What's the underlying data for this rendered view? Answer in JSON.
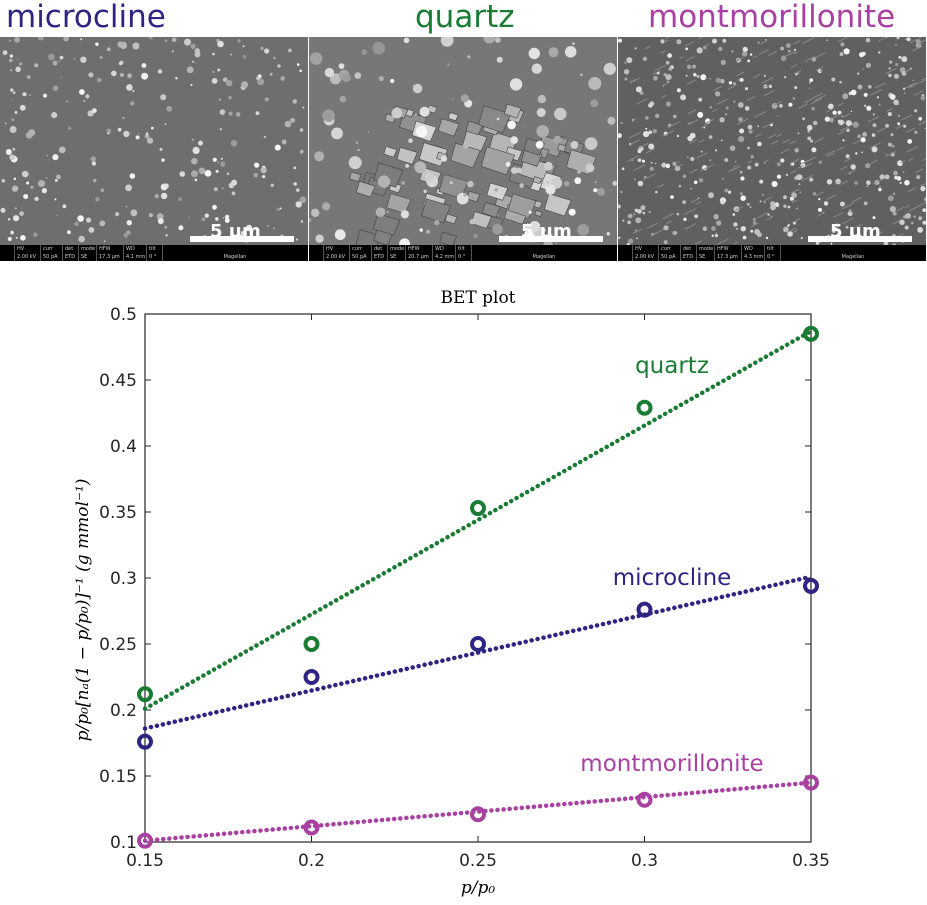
{
  "sem": {
    "labels": [
      {
        "text": "microcline",
        "color": "#2e2583"
      },
      {
        "text": "quartz",
        "color": "#1a7b34"
      },
      {
        "text": "montmorillonite",
        "color": "#a841a1"
      }
    ],
    "scale_bar": "5 µm",
    "footer_headers": [
      "HV",
      "curr",
      "det",
      "mode",
      "HFW",
      "WD",
      "tilt"
    ],
    "footers": [
      [
        "2.00 kV",
        "50 pA",
        "ETD",
        "SE",
        "17.3 µm",
        "4.1 mm",
        "0 °"
      ],
      [
        "2.00 kV",
        "50 pA",
        "ETD",
        "SE",
        "20.7 µm",
        "4.2 mm",
        "0 °"
      ],
      [
        "2.00 kV",
        "50 pA",
        "ETD",
        "SE",
        "17.3 µm",
        "4.3 mm",
        "0 °"
      ]
    ],
    "footer_brand": "Magellan"
  },
  "chart_data": {
    "type": "scatter",
    "title": "BET plot",
    "xlabel": "p/p₀",
    "ylabel": "p/p₀[nₐ(1 − p/p₀)]⁻¹ (g mmol⁻¹)",
    "xlim": [
      0.15,
      0.35
    ],
    "ylim": [
      0.1,
      0.5
    ],
    "xticks": [
      "0.15",
      "0.2",
      "0.25",
      "0.3",
      "0.35"
    ],
    "yticks": [
      "0.1",
      "0.15",
      "0.2",
      "0.25",
      "0.3",
      "0.35",
      "0.4",
      "0.45",
      "0.5"
    ],
    "x": [
      0.15,
      0.2,
      0.25,
      0.3,
      0.35
    ],
    "series": [
      {
        "name": "quartz",
        "color": "#1a7b34",
        "values": [
          0.212,
          0.25,
          0.353,
          0.429,
          0.485
        ],
        "fit": [
          0.201,
          0.487
        ]
      },
      {
        "name": "microcline",
        "color": "#2e2583",
        "values": [
          0.176,
          0.225,
          0.25,
          0.276,
          0.294
        ],
        "fit": [
          0.186,
          0.301
        ]
      },
      {
        "name": "montmorillonite",
        "color": "#a841a1",
        "values": [
          0.101,
          0.111,
          0.121,
          0.132,
          0.145
        ],
        "fit": [
          0.101,
          0.145
        ]
      }
    ]
  }
}
